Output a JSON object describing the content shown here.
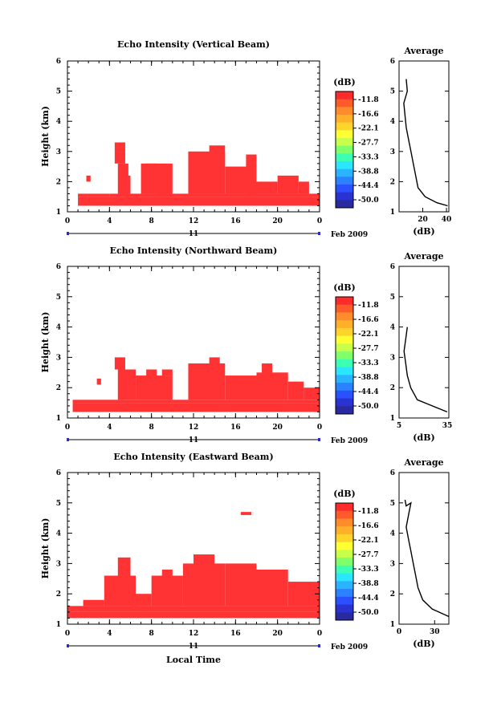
{
  "colors": {
    "echo": "#ff3333",
    "scale": [
      "#ff2a2a",
      "#ff5a2a",
      "#ff8c2a",
      "#ffb02a",
      "#ffd42a",
      "#ffff33",
      "#c8ff4a",
      "#7fff6a",
      "#3cffb4",
      "#2ae6ff",
      "#2ab4ff",
      "#2a82ff",
      "#2a50ff",
      "#2a32d2",
      "#2a2aa0"
    ]
  },
  "colorbar": {
    "unit": "(dB)",
    "ticks": [
      "-11.8",
      "-16.6",
      "-22.1",
      "-27.7",
      "-33.3",
      "-38.8",
      "-44.4",
      "-50.0"
    ]
  },
  "axis": {
    "ylabel": "Height (km)",
    "yticks": [
      "1",
      "2",
      "3",
      "4",
      "5",
      "6"
    ],
    "xticks": [
      "0",
      "4",
      "8",
      "12",
      "16",
      "20",
      "0"
    ],
    "day": "11",
    "month": "Feb 2009",
    "xlabel": "Local Time",
    "avg_title": "Average",
    "avg_xlabel": "(dB)"
  },
  "chart_data": [
    {
      "type": "heatmap",
      "title": "Echo Intensity (Vertical Beam)",
      "x_unit": "hour (local time, 11 Feb 2009)",
      "x_range": [
        0,
        24
      ],
      "y_range": [
        1,
        6
      ],
      "cells_note": "rows of [hour_start, hour_end, height_low_km, height_high_km] where echo exceeds -11.8 dB",
      "cells": [
        [
          1,
          24,
          1.2,
          1.5
        ],
        [
          1,
          4,
          1.5,
          1.6
        ],
        [
          4,
          24,
          1.5,
          1.6
        ],
        [
          4.5,
          5.5,
          2.6,
          3.3
        ],
        [
          4.8,
          5.8,
          1.6,
          2.6
        ],
        [
          5,
          6,
          1.6,
          2.2
        ],
        [
          7,
          10,
          1.6,
          2.6
        ],
        [
          7.5,
          8.5,
          2.4,
          2.6
        ],
        [
          8.5,
          9.5,
          1.6,
          2.0
        ],
        [
          11.5,
          15,
          1.6,
          3.0
        ],
        [
          12,
          14,
          2.4,
          2.9
        ],
        [
          13.5,
          15,
          2.5,
          3.2
        ],
        [
          15,
          18,
          1.6,
          2.5
        ],
        [
          17,
          18,
          1.6,
          2.9
        ],
        [
          18,
          20,
          1.6,
          2.0
        ],
        [
          20,
          22,
          1.6,
          2.2
        ],
        [
          22,
          23,
          1.6,
          2.0
        ],
        [
          1.8,
          2.2,
          2.0,
          2.2
        ]
      ],
      "avg": {
        "xticks": [
          "20",
          "40"
        ],
        "xrange": [
          0,
          42
        ],
        "profile": [
          [
            6,
            5.4
          ],
          [
            7,
            5.0
          ],
          [
            4,
            4.6
          ],
          [
            5,
            4.2
          ],
          [
            6,
            3.8
          ],
          [
            8,
            3.4
          ],
          [
            10,
            3.0
          ],
          [
            12,
            2.6
          ],
          [
            14,
            2.2
          ],
          [
            16,
            1.8
          ],
          [
            22,
            1.5
          ],
          [
            32,
            1.3
          ],
          [
            41,
            1.2
          ]
        ]
      }
    },
    {
      "type": "heatmap",
      "title": "Echo Intensity (Northward Beam)",
      "x_unit": "hour (local time, 11 Feb 2009)",
      "x_range": [
        0,
        24
      ],
      "y_range": [
        1,
        6
      ],
      "cells": [
        [
          0.5,
          24,
          1.2,
          1.5
        ],
        [
          0.5,
          24,
          1.5,
          1.6
        ],
        [
          4.5,
          5.5,
          2.6,
          3.0
        ],
        [
          4.8,
          6.5,
          1.6,
          2.6
        ],
        [
          2.8,
          3.2,
          2.1,
          2.3
        ],
        [
          6.5,
          10,
          1.6,
          2.4
        ],
        [
          7.5,
          8.5,
          2.3,
          2.6
        ],
        [
          9,
          10,
          2.4,
          2.6
        ],
        [
          11.5,
          15,
          1.6,
          2.8
        ],
        [
          13.5,
          14.5,
          2.6,
          3.0
        ],
        [
          15,
          18,
          1.6,
          2.4
        ],
        [
          18,
          21,
          1.6,
          2.5
        ],
        [
          18.5,
          19.5,
          2.4,
          2.8
        ],
        [
          21,
          22.5,
          1.6,
          2.2
        ],
        [
          22.5,
          24,
          1.6,
          2.0
        ]
      ],
      "avg": {
        "xticks": [
          "5",
          "35"
        ],
        "xrange": [
          5,
          35
        ],
        "profile": [
          [
            10,
            4.0
          ],
          [
            9,
            3.6
          ],
          [
            8,
            3.2
          ],
          [
            9,
            2.8
          ],
          [
            10,
            2.4
          ],
          [
            12,
            2.0
          ],
          [
            16,
            1.6
          ],
          [
            25,
            1.4
          ],
          [
            34,
            1.2
          ]
        ]
      }
    },
    {
      "type": "heatmap",
      "title": "Echo Intensity (Eastward Beam)",
      "x_unit": "hour (local time, 11 Feb 2009)",
      "x_range": [
        0,
        24
      ],
      "y_range": [
        1,
        6
      ],
      "cells": [
        [
          0,
          24,
          1.2,
          1.4
        ],
        [
          0,
          24,
          1.4,
          1.6
        ],
        [
          1.5,
          3.5,
          1.6,
          1.8
        ],
        [
          3.5,
          6.5,
          1.6,
          2.6
        ],
        [
          4.8,
          6,
          2.6,
          3.2
        ],
        [
          6,
          8,
          1.6,
          2.0
        ],
        [
          8,
          11,
          1.6,
          2.6
        ],
        [
          9,
          10,
          2.6,
          2.8
        ],
        [
          11,
          15,
          1.6,
          3.0
        ],
        [
          12,
          14,
          2.8,
          3.3
        ],
        [
          15,
          18,
          1.6,
          3.0
        ],
        [
          16.5,
          17.5,
          4.6,
          4.7
        ],
        [
          18,
          21,
          1.6,
          2.8
        ],
        [
          21,
          24,
          1.6,
          2.4
        ],
        [
          22,
          23.5,
          2.0,
          2.2
        ]
      ],
      "avg": {
        "xticks": [
          "0",
          "30"
        ],
        "xrange": [
          0,
          42
        ],
        "profile": [
          [
            5,
            5.1
          ],
          [
            6,
            4.9
          ],
          [
            10,
            5.0
          ],
          [
            8,
            4.6
          ],
          [
            6,
            4.2
          ],
          [
            8,
            3.8
          ],
          [
            10,
            3.4
          ],
          [
            12,
            3.0
          ],
          [
            14,
            2.6
          ],
          [
            16,
            2.2
          ],
          [
            20,
            1.8
          ],
          [
            28,
            1.5
          ],
          [
            42,
            1.25
          ]
        ]
      }
    }
  ]
}
